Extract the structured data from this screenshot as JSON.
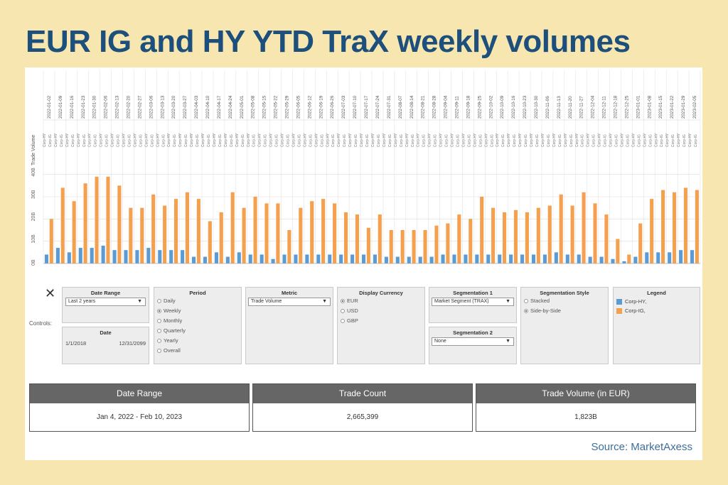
{
  "headline": "EUR IG and HY YTD TraX weekly volumes",
  "source": "Source: MarketAxess",
  "colors": {
    "hy": "#5b9bd5",
    "ig": "#f5a04e",
    "headline": "#1d4f7c",
    "background": "#f7e6b0"
  },
  "chart_data": {
    "type": "bar",
    "ylabel": "Trade Volume",
    "ylim": [
      0,
      45
    ],
    "ytick_labels": [
      "0B",
      "10B",
      "20B",
      "30B",
      "40B"
    ],
    "yticks": [
      0,
      10,
      20,
      30,
      40
    ],
    "grid": true,
    "categories": [
      "2022-01-02",
      "2022-01-09",
      "2022-01-16",
      "2022-01-23",
      "2022-01-30",
      "2022-02-06",
      "2022-02-13",
      "2022-02-20",
      "2022-02-27",
      "2022-03-06",
      "2022-03-13",
      "2022-03-20",
      "2022-03-27",
      "2022-04-03",
      "2022-04-10",
      "2022-04-17",
      "2022-04-24",
      "2022-05-01",
      "2022-05-08",
      "2022-05-15",
      "2022-05-22",
      "2022-05-29",
      "2022-06-05",
      "2022-06-12",
      "2022-06-19",
      "2022-06-26",
      "2022-07-03",
      "2022-07-10",
      "2022-07-17",
      "2022-07-24",
      "2022-07-31",
      "2022-08-07",
      "2022-08-14",
      "2022-08-21",
      "2022-08-28",
      "2022-09-04",
      "2022-09-11",
      "2022-09-18",
      "2022-09-25",
      "2022-10-02",
      "2022-10-09",
      "2022-10-16",
      "2022-10-23",
      "2022-10-30",
      "2022-11-06",
      "2022-11-13",
      "2022-11-20",
      "2022-11-27",
      "2022-12-04",
      "2022-12-11",
      "2022-12-18",
      "2022-12-25",
      "2023-01-01",
      "2023-01-08",
      "2023-01-15",
      "2023-01-22",
      "2023-01-29",
      "2023-02-05"
    ],
    "sub_labels": [
      "Corp-HY",
      "Corp-IG"
    ],
    "series": [
      {
        "name": "Corp-HY",
        "values": [
          4,
          7,
          5,
          7,
          7,
          8,
          6,
          6,
          6,
          7,
          6,
          6,
          6,
          3,
          3,
          5,
          3,
          5,
          4,
          4,
          2,
          4,
          4,
          4,
          4,
          4,
          4,
          4,
          4,
          4,
          3,
          3,
          3,
          3,
          3,
          4,
          4,
          4,
          4,
          4,
          4,
          4,
          4,
          4,
          4,
          5,
          4,
          4,
          3,
          3,
          2,
          1,
          3,
          5,
          5,
          5,
          6,
          6
        ]
      },
      {
        "name": "Corp-IG",
        "values": [
          20,
          34,
          28,
          36,
          39,
          39,
          35,
          25,
          25,
          31,
          26,
          29,
          32,
          29,
          19,
          23,
          32,
          25,
          30,
          27,
          27,
          15,
          25,
          28,
          29,
          27,
          23,
          22,
          16,
          22,
          15,
          15,
          15,
          15,
          17,
          18,
          22,
          20,
          30,
          25,
          23,
          24,
          23,
          25,
          26,
          31,
          26,
          32,
          27,
          22,
          11,
          4,
          18,
          29,
          33,
          32,
          34,
          33
        ]
      }
    ]
  },
  "controls": {
    "label": "Controls:",
    "close": "✕",
    "date_range": {
      "title": "Date Range",
      "selected": "Last 2 years"
    },
    "date": {
      "title": "Date",
      "start": "1/1/2018",
      "end": "12/31/2099"
    },
    "period": {
      "title": "Period",
      "options": [
        "Daily",
        "Weekly",
        "Monthly",
        "Quarterly",
        "Yearly",
        "Overall"
      ],
      "selected": "Weekly"
    },
    "metric": {
      "title": "Metric",
      "selected": "Trade Volume"
    },
    "currency": {
      "title": "Display Currency",
      "options": [
        "EUR",
        "USD",
        "GBP"
      ],
      "selected": "EUR"
    },
    "segmentation1": {
      "title": "Segmentation 1",
      "selected": "Market Segment (TRAX)"
    },
    "segmentation2": {
      "title": "Segmentation 2",
      "selected": "None"
    },
    "seg_style": {
      "title": "Segmentation Style",
      "options": [
        "Stacked",
        "Side-by-Side"
      ],
      "selected": "Side-by-Side"
    },
    "legend": {
      "title": "Legend",
      "items": [
        "Corp-HY,",
        "Corp-IG,"
      ]
    }
  },
  "stats": [
    {
      "header": "Date Range",
      "value": "Jan 4, 2022 - Feb 10, 2023"
    },
    {
      "header": "Trade Count",
      "value": "2,665,399"
    },
    {
      "header": "Trade Volume (in EUR)",
      "value": "1,823B"
    }
  ]
}
